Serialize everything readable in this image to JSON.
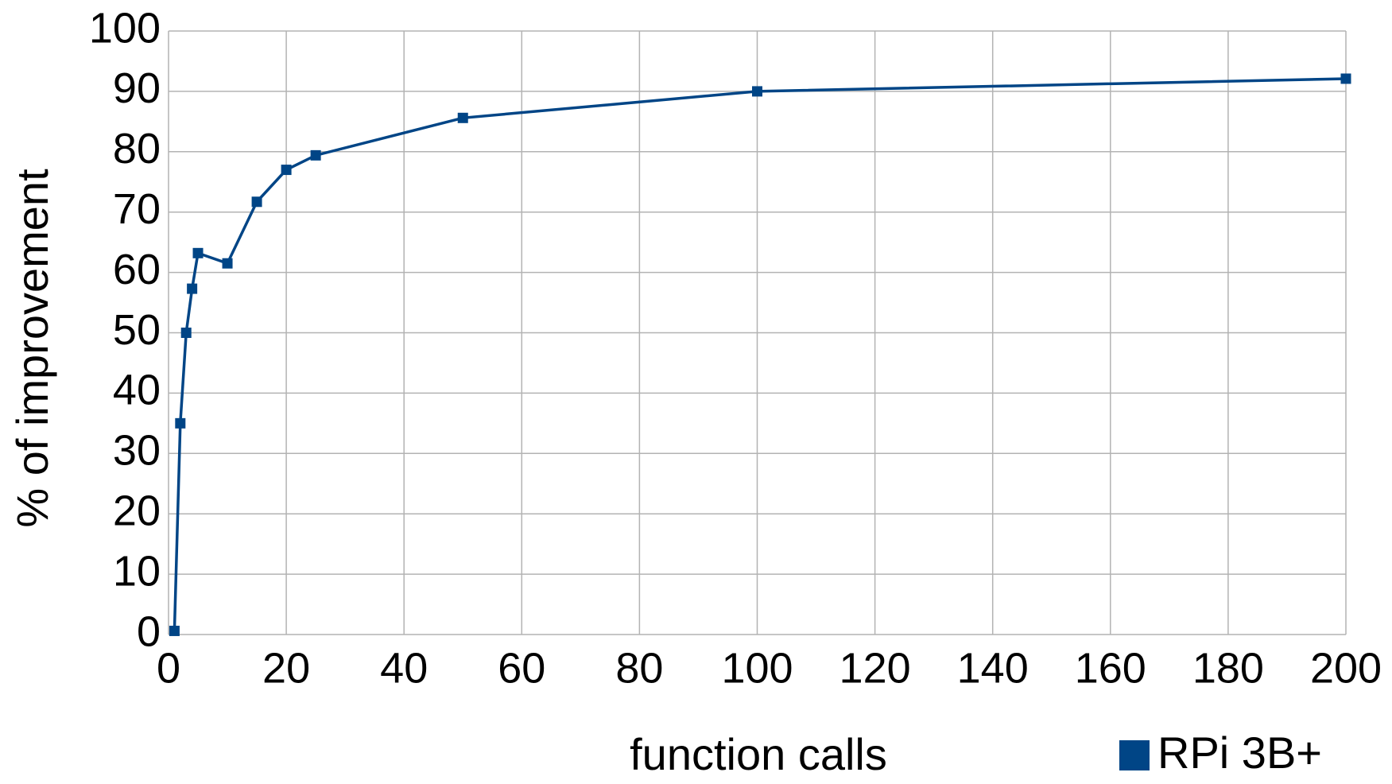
{
  "chart_data": {
    "type": "line",
    "x_label": "function calls",
    "y_label": "% of improvement",
    "x": [
      1,
      2,
      3,
      4,
      5,
      10,
      15,
      20,
      25,
      50,
      100,
      200
    ],
    "series": [
      {
        "name": "RPi 3B+",
        "color": "#004586",
        "values": [
          0.6,
          35,
          50,
          57.3,
          63.2,
          61.5,
          71.7,
          77,
          79.4,
          85.6,
          90,
          92.1
        ]
      }
    ],
    "xlim": [
      0,
      200
    ],
    "xticks": [
      0,
      20,
      40,
      60,
      80,
      100,
      120,
      140,
      160,
      180,
      200
    ],
    "ylim": [
      0,
      100
    ],
    "yticks": [
      0,
      10,
      20,
      30,
      40,
      50,
      60,
      70,
      80,
      90,
      100
    ],
    "grid": true,
    "legend": "bottom-right"
  }
}
